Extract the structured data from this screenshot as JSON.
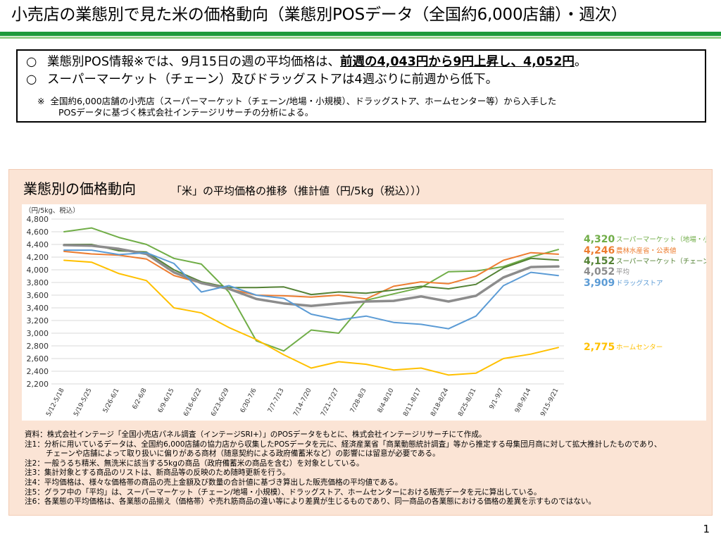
{
  "header": {
    "title": "小売店の業態別で見た米の価格動向（業態別POSデータ（全国約6,000店舗）・週次）"
  },
  "summary": {
    "bullet": "○",
    "line1_text": "業態別POS情報※では、9月15日の週の平均価格は、",
    "line1_emphasis": "前週の4,043円から9円上昇し、4,052円",
    "line1_end": "。",
    "line2_text": "スーパーマーケット（チェーン）及びドラッグストアは4週ぶりに前週から低下。",
    "note_mark": "※",
    "note_line1": "全国約6,000店舗の小売店（スーパーマーケット（チェーン/地場・小規模）、ドラッグストア、ホームセンター等）から入手した",
    "note_line2": "POSデータに基づく株式会社インテージリサーチの分析による。"
  },
  "panel": {
    "title": "業態別の価格動向",
    "subtitle": "「米」の平均価格の推移（推計値（円/5kg（税込）））"
  },
  "chart_data": {
    "type": "line",
    "ylabel": "（円/5kg、税込）",
    "ylim": [
      2200,
      4800
    ],
    "yticks": [
      2200,
      2400,
      2600,
      2800,
      3000,
      3200,
      3400,
      3600,
      3800,
      4000,
      4200,
      4400,
      4600,
      4800
    ],
    "grid": true,
    "legend_placement": "right",
    "categories": [
      "5/12-5/18",
      "5/19-5/25",
      "5/26-6/1",
      "6/2-6/8",
      "6/9-6/15",
      "6/16-6/22",
      "6/23-6/29",
      "6/30-7/6",
      "7/7-7/13",
      "7/14-7/20",
      "7/21-7/27",
      "7/28-8/3",
      "8/4-8/10",
      "8/11-8/17",
      "8/18-8/24",
      "8/25-8/31",
      "9/1-9/7",
      "9/8-9/14",
      "9/15-9/21"
    ],
    "series": [
      {
        "name": "スーパーマーケット（地場・小規模）",
        "label": "4,320",
        "color": "#70ad47",
        "width": 2,
        "values": [
          4600,
          4660,
          4510,
          4400,
          4180,
          4090,
          3650,
          2880,
          2720,
          3050,
          3000,
          3520,
          3620,
          3720,
          3970,
          3980,
          4050,
          4200,
          4320
        ]
      },
      {
        "name": "農林水産省・公表値",
        "label": "4,246",
        "color": "#ed7d31",
        "width": 2,
        "values": [
          4290,
          4250,
          4230,
          4170,
          3910,
          3790,
          3700,
          3600,
          3590,
          3570,
          3600,
          3540,
          3740,
          3810,
          3780,
          3900,
          4150,
          4270,
          4246
        ]
      },
      {
        "name": "スーパーマーケット（チェーン）",
        "label": "4,152",
        "color": "#548235",
        "width": 2,
        "values": [
          4400,
          4400,
          4300,
          4280,
          4000,
          3810,
          3720,
          3720,
          3730,
          3610,
          3650,
          3630,
          3680,
          3740,
          3700,
          3770,
          4030,
          4180,
          4152
        ]
      },
      {
        "name": "平均",
        "label": "4,052",
        "color": "#8c8c8c",
        "width": 3.5,
        "values": [
          4390,
          4380,
          4330,
          4250,
          3960,
          3790,
          3700,
          3540,
          3470,
          3430,
          3470,
          3500,
          3510,
          3580,
          3500,
          3590,
          3880,
          4043,
          4052
        ]
      },
      {
        "name": "ドラッグストア",
        "label": "3,909",
        "color": "#5b9bd5",
        "width": 2,
        "values": [
          4310,
          4310,
          4240,
          4270,
          4100,
          3650,
          3750,
          3600,
          3550,
          3300,
          3210,
          3270,
          3170,
          3140,
          3070,
          3270,
          3750,
          3960,
          3909
        ]
      },
      {
        "name": "ホームセンター",
        "label": "2,775",
        "color": "#ffc000",
        "width": 2,
        "values": [
          4150,
          4120,
          3940,
          3830,
          3400,
          3320,
          3090,
          2900,
          2660,
          2450,
          2550,
          2510,
          2420,
          2450,
          2340,
          2370,
          2600,
          2670,
          2775
        ]
      }
    ]
  },
  "notes": [
    "資料：株式会社インテージ「全国小売店パネル調査（インテージSRI+）」のPOSデータをもとに、株式会社インテージリサーチにて作成。",
    "注1：分析に用いているデータは、全国約6,000店舗の協力店から収集したPOSデータを元に、経済産業省「商業動態統計調査」等から推定する母集団月商に対して拡大推計したものであり、",
    "チェーンや店舗によって取り扱いに偏りがある商材（随意契約による政府備蓄米など）の影響には留意が必要である。",
    "注2：一般うるち精米、無洗米に該当する5kgの商品（政府備蓄米の商品を含む）を対象としている。",
    "注3：集計対象とする商品のリストは、新商品等の反映のため随時更新を行う。",
    "注4：平均価格は、様々な価格帯の商品の売上金額及び数量の合計値に基づき算出した販売価格の平均値である。",
    "注5：グラフ中の「平均」は、スーパーマーケット（チェーン/地場・小規模）、ドラッグストア、ホームセンターにおける販売データを元に算出している。",
    "注6：各業態の平均価格は、各業態の品揃え（価格帯）や売れ筋商品の違い等により差異が生じるものであり、同一商品の各業態における価格の差異を示すものではない。"
  ],
  "footer": {
    "page_number": "1"
  }
}
